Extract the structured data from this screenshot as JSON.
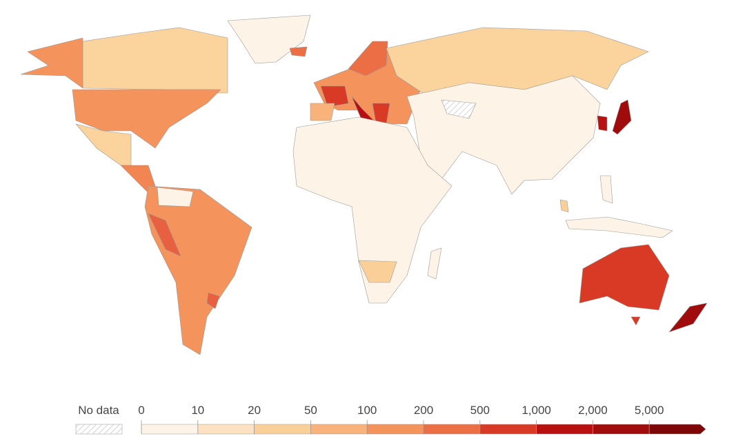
{
  "legend": {
    "no_data_label": "No data",
    "ticks": [
      0,
      10,
      20,
      50,
      100,
      200,
      500,
      {
        "value": 1000,
        "label": "1,000"
      },
      {
        "value": 2000,
        "label": "2,000"
      },
      {
        "value": 5000,
        "label": "5,000"
      }
    ],
    "colors": [
      "#fdf3e6",
      "#fce2c0",
      "#fbcf98",
      "#f9b27a",
      "#f4935c",
      "#ec6e45",
      "#d83a26",
      "#b81010",
      "#a00b0b",
      "#7e0606"
    ]
  }
}
